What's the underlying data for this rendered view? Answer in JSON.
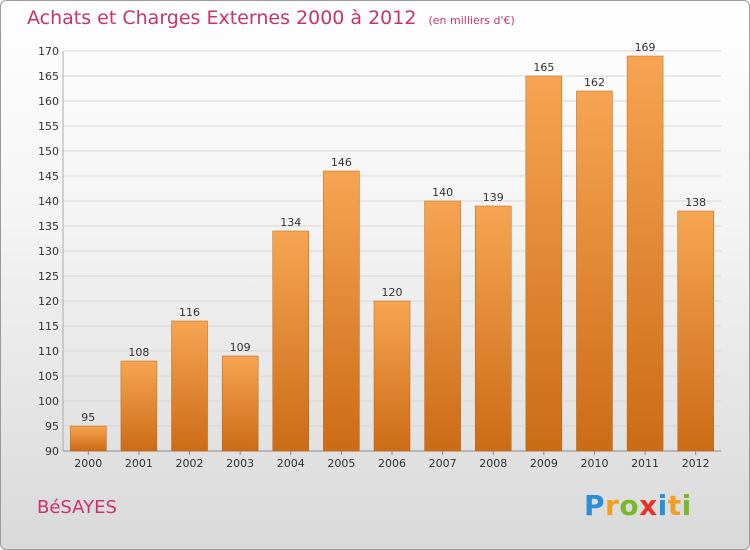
{
  "header": {
    "title": "Achats et Charges Externes 2000 à 2012",
    "subtitle": "(en milliers d'€)"
  },
  "footer": {
    "commune": "BéSAYES",
    "brand_letters": [
      "P",
      "r",
      "o",
      "x",
      "i",
      "t",
      "i"
    ],
    "brand_colors": [
      "#2b8ed6",
      "#f0a020",
      "#7ab829",
      "#e4352a",
      "#2b8ed6",
      "#f0a020",
      "#7ab829"
    ]
  },
  "colors": {
    "bar_top": "#f6a552",
    "bar_bottom": "#cc6b16",
    "title": "#c8336b"
  },
  "chart_data": {
    "type": "bar",
    "title": "Achats et Charges Externes 2000 à 2012",
    "categories": [
      "2000",
      "2001",
      "2002",
      "2003",
      "2004",
      "2005",
      "2006",
      "2007",
      "2008",
      "2009",
      "2010",
      "2011",
      "2012"
    ],
    "values": [
      95,
      108,
      116,
      109,
      134,
      146,
      120,
      140,
      139,
      165,
      162,
      169,
      138
    ],
    "ylim": [
      90,
      170
    ],
    "yticks": [
      90,
      95,
      100,
      105,
      110,
      115,
      120,
      125,
      130,
      135,
      140,
      145,
      150,
      155,
      160,
      165,
      170
    ],
    "grid": true,
    "data_labels": true
  }
}
